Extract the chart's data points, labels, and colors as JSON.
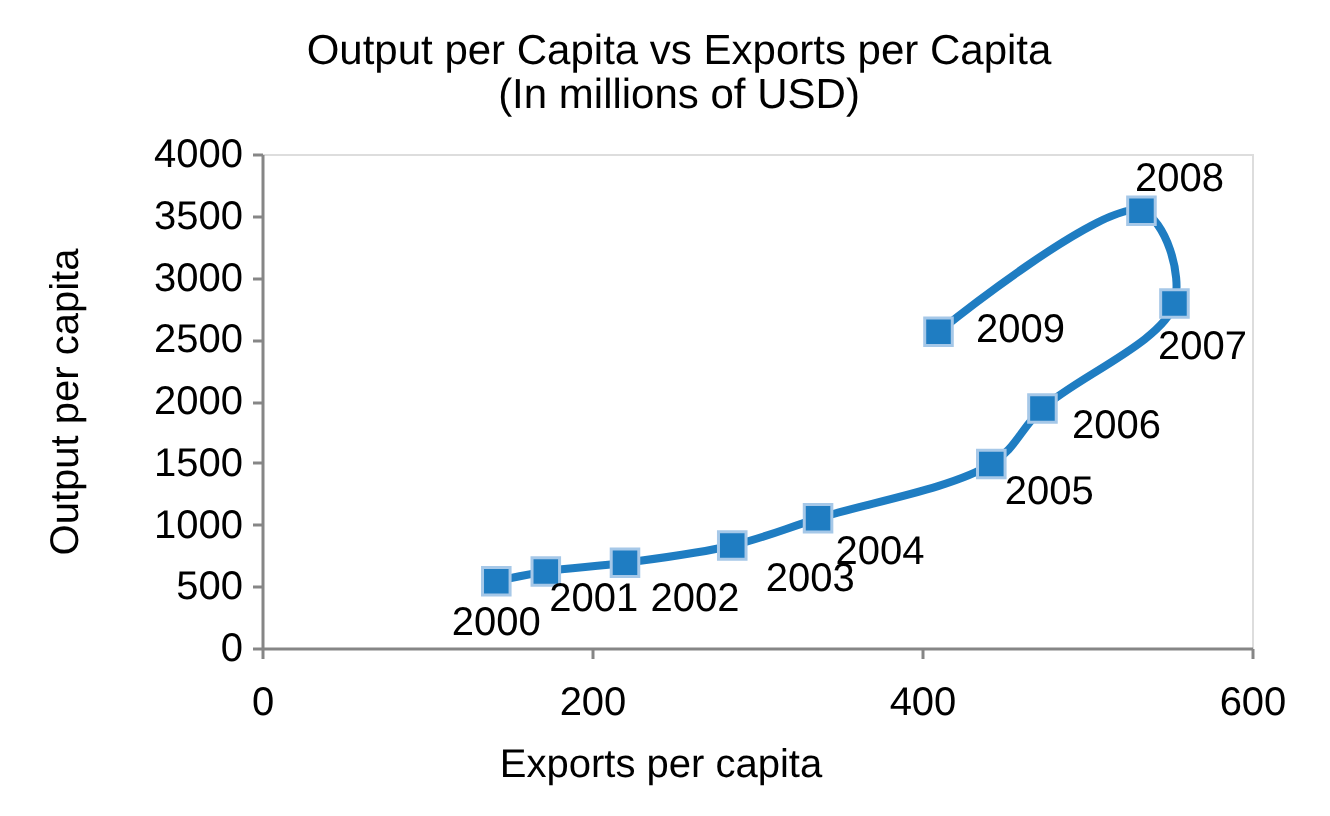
{
  "chart_data": {
    "type": "line",
    "title": "Output per Capita vs Exports per Capita",
    "subtitle": "(In millions of USD)",
    "xlabel": "Exports per capita",
    "ylabel": "Output per capita",
    "x": [
      142,
      172,
      220,
      285,
      337,
      442,
      473,
      553,
      533,
      410
    ],
    "series": [
      {
        "color": "#1f7dc2",
        "values": [
          540,
          620,
          690,
          830,
          1050,
          1490,
          1940,
          2790,
          3540,
          2560
        ]
      }
    ],
    "xlim": [
      0,
      600
    ],
    "xticks": [
      0,
      200,
      400,
      600
    ],
    "ylim": [
      0,
      4000
    ],
    "yticks": [
      0,
      500,
      1000,
      1500,
      2000,
      2500,
      3000,
      3500,
      4000
    ],
    "marker": "square",
    "line_style": "solid",
    "grid": false,
    "legend": false,
    "annotations": [
      {
        "text": "2000",
        "x": 142,
        "y": 540
      },
      {
        "text": "2001",
        "x": 172,
        "y": 620
      },
      {
        "text": "2002",
        "x": 220,
        "y": 690
      },
      {
        "text": "2003",
        "x": 285,
        "y": 830
      },
      {
        "text": "2004",
        "x": 337,
        "y": 1050
      },
      {
        "text": "2005",
        "x": 442,
        "y": 1490
      },
      {
        "text": "2006",
        "x": 473,
        "y": 1940
      },
      {
        "text": "2007",
        "x": 553,
        "y": 2790
      },
      {
        "text": "2008",
        "x": 533,
        "y": 3540
      },
      {
        "text": "2009",
        "x": 410,
        "y": 2560
      }
    ]
  }
}
